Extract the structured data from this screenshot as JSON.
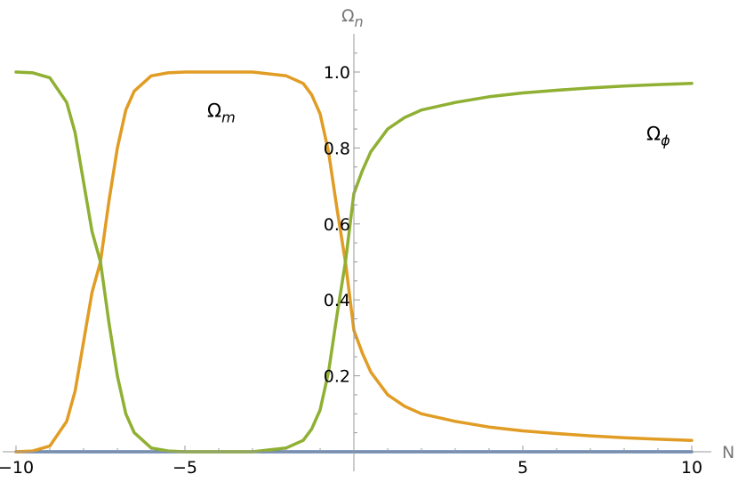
{
  "chart_data": {
    "type": "line",
    "title": "",
    "xlabel": "N",
    "ylabel": {
      "base": "Ω",
      "sub": "n"
    },
    "xlim": [
      -10,
      10
    ],
    "ylim": [
      0,
      1.08
    ],
    "x_ticks": [
      {
        "value": -10,
        "label": "−10"
      },
      {
        "value": -5,
        "label": "−5"
      },
      {
        "value": 5,
        "label": "5"
      },
      {
        "value": 10,
        "label": "10"
      }
    ],
    "y_ticks": [
      {
        "value": 0.2,
        "label": "0.2"
      },
      {
        "value": 0.4,
        "label": "0.4"
      },
      {
        "value": 0.6,
        "label": "0.6"
      },
      {
        "value": 0.8,
        "label": "0.8"
      },
      {
        "value": 1.0,
        "label": "1.0"
      }
    ],
    "grid": false,
    "series": [
      {
        "name": "",
        "color": "#5e81b5",
        "x": [
          -10,
          -5,
          0,
          5,
          10
        ],
        "y": [
          0,
          0,
          0,
          0,
          0
        ]
      },
      {
        "name": "",
        "color": "#e19c24",
        "x": [
          -10,
          -9.5,
          -9,
          -8.5,
          -8.25,
          -8,
          -7.75,
          -7.5,
          -7.25,
          -7,
          -6.75,
          -6.5,
          -6,
          -5.5,
          -5,
          -4,
          -3,
          -2,
          -1.5,
          -1.25,
          -1,
          -0.75,
          -0.5,
          -0.25,
          0,
          0.25,
          0.5,
          1,
          1.5,
          2,
          3,
          4,
          5,
          6,
          7,
          8,
          9,
          10
        ],
        "y": [
          0,
          0.002,
          0.015,
          0.08,
          0.16,
          0.29,
          0.42,
          0.5,
          0.66,
          0.8,
          0.9,
          0.95,
          0.99,
          0.998,
          1.0,
          1.0,
          1.0,
          0.99,
          0.97,
          0.94,
          0.89,
          0.79,
          0.64,
          0.5,
          0.32,
          0.26,
          0.21,
          0.15,
          0.12,
          0.1,
          0.08,
          0.065,
          0.055,
          0.048,
          0.042,
          0.037,
          0.033,
          0.03
        ]
      },
      {
        "name": "",
        "color": "#8fb032",
        "x": [
          -10,
          -9.5,
          -9,
          -8.5,
          -8.25,
          -8,
          -7.75,
          -7.5,
          -7.25,
          -7,
          -6.75,
          -6.5,
          -6,
          -5.5,
          -5,
          -4,
          -3,
          -2,
          -1.5,
          -1.25,
          -1,
          -0.75,
          -0.5,
          -0.25,
          0,
          0.25,
          0.5,
          1,
          1.5,
          2,
          3,
          4,
          5,
          6,
          7,
          8,
          9,
          10
        ],
        "y": [
          1.0,
          0.998,
          0.985,
          0.92,
          0.84,
          0.71,
          0.58,
          0.5,
          0.34,
          0.2,
          0.1,
          0.05,
          0.01,
          0.002,
          0,
          0,
          0,
          0.01,
          0.03,
          0.06,
          0.11,
          0.21,
          0.36,
          0.5,
          0.68,
          0.74,
          0.79,
          0.85,
          0.88,
          0.9,
          0.92,
          0.935,
          0.945,
          0.952,
          0.958,
          0.963,
          0.967,
          0.97
        ]
      }
    ],
    "annotations": [
      {
        "base": "Ω",
        "sub": "m",
        "x": -4.0,
        "y": 0.9
      },
      {
        "base": "Ω",
        "sub": "ϕ",
        "x": 9.0,
        "y": 0.84
      }
    ]
  }
}
